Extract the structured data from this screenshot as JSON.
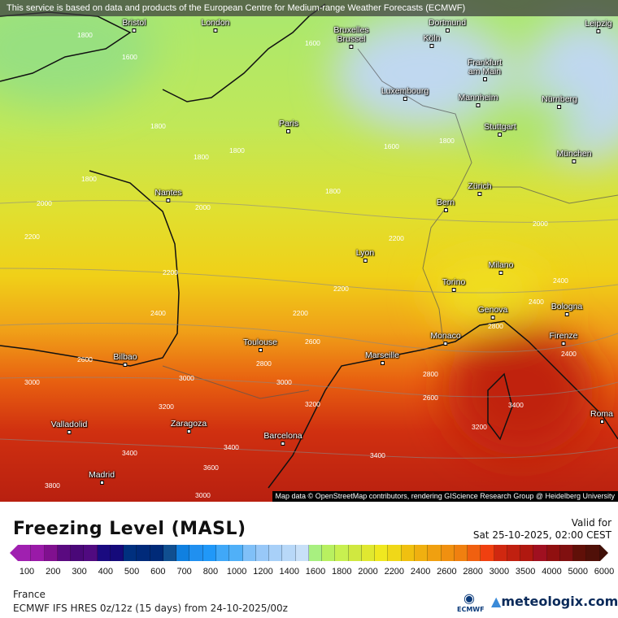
{
  "banner": "This service is based on data and products of the European Centre for Medium-range Weather Forecasts (ECMWF)",
  "attribution": "Map data © OpenStreetMap contributors, rendering GIScience Research Group @ Heidelberg University",
  "cities": [
    "Bristol",
    "London",
    "Dortmund",
    "Leipzig",
    "Bruxelles\nBrussel",
    "Köln",
    "Frankfurt\nam Main",
    "Luxembourg",
    "Mannheim",
    "Nürnberg",
    "Paris",
    "Stuttgart",
    "München",
    "Nantes",
    "Zürich",
    "Bern",
    "Lyon",
    "Milano",
    "Torino",
    "Bologna",
    "Genova",
    "Monaco",
    "Firenze",
    "Toulouse",
    "Bilbao",
    "Marseille",
    "Roma",
    "Valladolid",
    "Zaragoza",
    "Barcelona",
    "Madrid"
  ],
  "contour_labels": [
    "1800",
    "1600",
    "1600",
    "1800",
    "1800",
    "1800",
    "1800",
    "1800",
    "1600",
    "1800",
    "2000",
    "2000",
    "2000",
    "2200",
    "2200",
    "2200",
    "2200",
    "2400",
    "2400",
    "2200",
    "2400",
    "2600",
    "2800",
    "2600",
    "2800",
    "3000",
    "3000",
    "3000",
    "3200",
    "3200",
    "3200",
    "3400",
    "3400",
    "3600",
    "3400",
    "3800",
    "3000",
    "2800",
    "3400",
    "2600",
    "2400"
  ],
  "legend": {
    "title": "Freezing Level (MASL)",
    "valid_label": "Valid for",
    "valid_time": "Sat 25-10-2025, 02:00 CEST",
    "ticks": [
      "100",
      "200",
      "300",
      "400",
      "500",
      "600",
      "700",
      "800",
      "1000",
      "1200",
      "1400",
      "1600",
      "1800",
      "2000",
      "2200",
      "2400",
      "2600",
      "2800",
      "3000",
      "3500",
      "4000",
      "5000",
      "6000"
    ],
    "colors": [
      "#a020b0",
      "#9a1aa8",
      "#80108f",
      "#5a0a80",
      "#4a0878",
      "#500a80",
      "#1a0a80",
      "#150a7a",
      "#00307f",
      "#002a7a",
      "#002a78",
      "#104f90",
      "#1080e0",
      "#2090f0",
      "#2098f8",
      "#40a8f8",
      "#50b0f8",
      "#80c0f8",
      "#98c8f8",
      "#a8d0f8",
      "#b8d8f8",
      "#c8e0f8",
      "#a8f080",
      "#b8f060",
      "#c8f050",
      "#d0e840",
      "#e0e830",
      "#f0e820",
      "#f0d818",
      "#f0c010",
      "#f0b010",
      "#f0a010",
      "#f09010",
      "#f08010",
      "#f06010",
      "#f04010",
      "#d02810",
      "#c02010",
      "#b01810",
      "#a01020",
      "#901010",
      "#801010",
      "#601008",
      "#501008"
    ],
    "left_arrow_color": "#a020b0",
    "right_arrow_color": "#401008"
  },
  "footer": {
    "region": "France",
    "model": "ECMWF IFS HRES 0z/12z (15 days) from  24-10-2025/00z",
    "ecmwf_logo": "ECMWF",
    "brand": "meteologix.com"
  }
}
